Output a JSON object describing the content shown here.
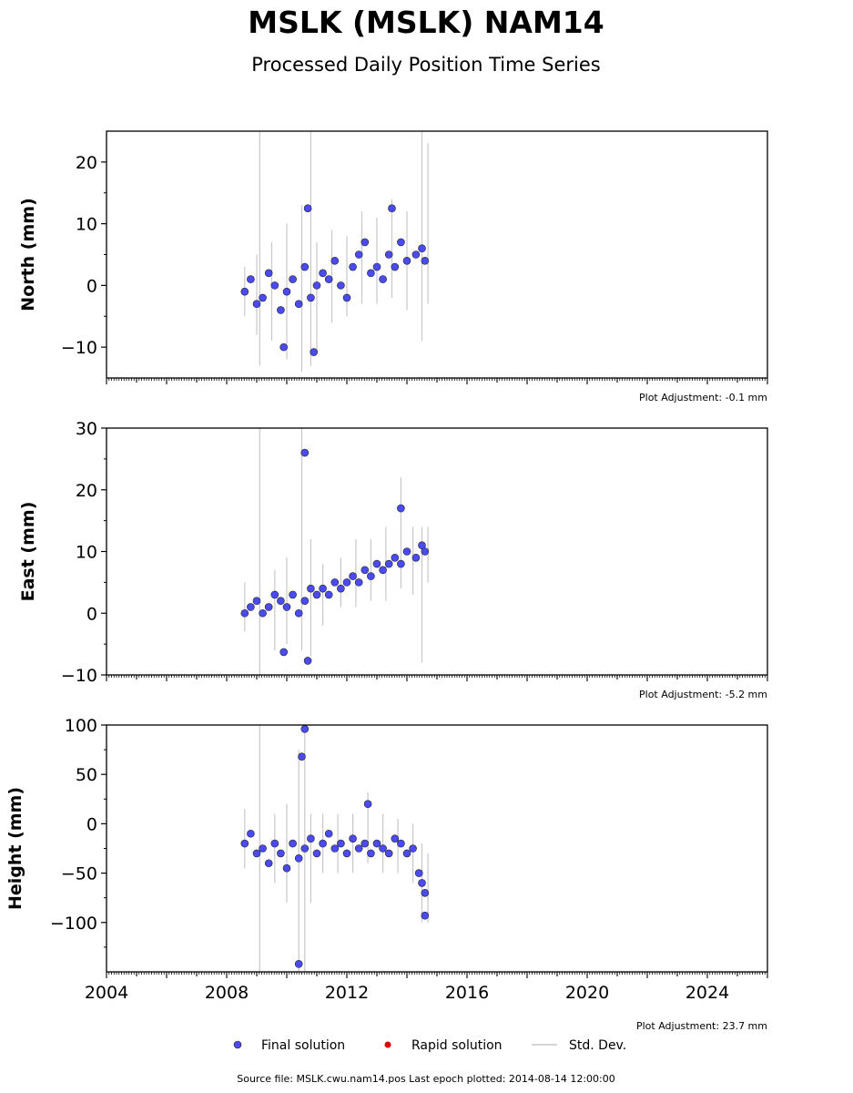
{
  "title": "MSLK (MSLK) NAM14",
  "subtitle": "Processed Daily Position Time Series",
  "footer": "Source file: MSLK.cwu.nam14.pos  Last epoch plotted: 2014-08-14 12:00:00",
  "colors": {
    "final": "#4b4bf5",
    "rapid": "#e00000",
    "stddev": "#c8c8c8"
  },
  "chart_data": [
    {
      "type": "scatter",
      "ylabel": "North (mm)",
      "ylim": [
        -15,
        25
      ],
      "yticks": [
        -10,
        0,
        10,
        20
      ],
      "xlim": [
        2004,
        2026
      ],
      "xticks": [
        2004,
        2008,
        2012,
        2016,
        2020,
        2024
      ],
      "adjustment": "Plot Adjustment: -0.1 mm",
      "series": [
        {
          "name": "Final solution",
          "x": [
            2008.6,
            2008.8,
            2009.0,
            2009.2,
            2009.4,
            2009.6,
            2009.8,
            2010.0,
            2010.2,
            2010.4,
            2010.6,
            2010.8,
            2011.0,
            2011.2,
            2011.4,
            2011.6,
            2011.8,
            2012.0,
            2012.2,
            2012.4,
            2012.6,
            2012.8,
            2013.0,
            2013.2,
            2013.4,
            2013.6,
            2013.8,
            2014.0,
            2014.3,
            2014.5,
            2014.6,
            2009.9,
            2010.7,
            2010.9,
            2013.5
          ],
          "y": [
            -1,
            1,
            -3,
            -2,
            2,
            0,
            -4,
            -1,
            1,
            -3,
            3,
            -2,
            0,
            2,
            1,
            4,
            0,
            -2,
            3,
            5,
            7,
            2,
            3,
            1,
            5,
            3,
            7,
            4,
            5,
            6,
            4,
            -10,
            12.5,
            -10.8,
            12.5
          ]
        }
      ],
      "std_dev": [
        [
          2008.6,
          -5,
          3
        ],
        [
          2009.0,
          -8,
          5
        ],
        [
          2009.1,
          -13,
          25
        ],
        [
          2009.5,
          -9,
          7
        ],
        [
          2010.0,
          -12,
          10
        ],
        [
          2010.5,
          -14,
          13
        ],
        [
          2010.8,
          -13,
          25
        ],
        [
          2011.0,
          -11,
          7
        ],
        [
          2011.5,
          -6,
          9
        ],
        [
          2012.0,
          -5,
          8
        ],
        [
          2012.5,
          -3,
          12
        ],
        [
          2013.0,
          -3,
          11
        ],
        [
          2013.5,
          -2,
          14
        ],
        [
          2014.0,
          -4,
          12
        ],
        [
          2014.5,
          -9,
          25
        ],
        [
          2014.7,
          -3,
          23
        ]
      ]
    },
    {
      "type": "scatter",
      "ylabel": "East (mm)",
      "ylim": [
        -10,
        30
      ],
      "yticks": [
        -10,
        0,
        10,
        20,
        30
      ],
      "xlim": [
        2004,
        2026
      ],
      "xticks": [
        2004,
        2008,
        2012,
        2016,
        2020,
        2024
      ],
      "adjustment": "Plot Adjustment: -5.2 mm",
      "series": [
        {
          "name": "Final solution",
          "x": [
            2008.6,
            2008.8,
            2009.0,
            2009.2,
            2009.4,
            2009.6,
            2009.8,
            2010.0,
            2010.2,
            2010.4,
            2010.6,
            2010.8,
            2011.0,
            2011.2,
            2011.4,
            2011.6,
            2011.8,
            2012.0,
            2012.2,
            2012.4,
            2012.6,
            2012.8,
            2013.0,
            2013.2,
            2013.4,
            2013.6,
            2013.8,
            2014.0,
            2014.3,
            2014.5,
            2014.6,
            2010.6,
            2010.7,
            2009.9,
            2013.8
          ],
          "y": [
            0,
            1,
            2,
            0,
            1,
            3,
            2,
            1,
            3,
            0,
            2,
            4,
            3,
            4,
            3,
            5,
            4,
            5,
            6,
            5,
            7,
            6,
            8,
            7,
            8,
            9,
            8,
            10,
            9,
            11,
            10,
            26,
            -7.7,
            -6.3,
            17
          ]
        }
      ],
      "std_dev": [
        [
          2008.6,
          -3,
          5
        ],
        [
          2009.1,
          -10,
          30
        ],
        [
          2009.6,
          -6,
          7
        ],
        [
          2010.0,
          -5,
          9
        ],
        [
          2010.5,
          -6,
          30
        ],
        [
          2010.8,
          -7,
          12
        ],
        [
          2011.2,
          -2,
          8
        ],
        [
          2011.8,
          1,
          9
        ],
        [
          2012.3,
          1,
          12
        ],
        [
          2012.8,
          2,
          12
        ],
        [
          2013.3,
          2,
          14
        ],
        [
          2013.8,
          4,
          22
        ],
        [
          2014.2,
          3,
          14
        ],
        [
          2014.5,
          -8,
          14
        ],
        [
          2014.7,
          5,
          14
        ]
      ]
    },
    {
      "type": "scatter",
      "ylabel": "Height (mm)",
      "ylim": [
        -150,
        100
      ],
      "yticks": [
        -100,
        -50,
        0,
        50,
        100
      ],
      "xlim": [
        2004,
        2026
      ],
      "xticks": [
        2004,
        2008,
        2012,
        2016,
        2020,
        2024
      ],
      "adjustment": "Plot Adjustment: 23.7 mm",
      "series": [
        {
          "name": "Final solution",
          "x": [
            2008.6,
            2008.8,
            2009.0,
            2009.2,
            2009.4,
            2009.6,
            2009.8,
            2010.0,
            2010.2,
            2010.4,
            2010.6,
            2010.8,
            2011.0,
            2011.2,
            2011.4,
            2011.6,
            2011.8,
            2012.0,
            2012.2,
            2012.4,
            2012.6,
            2012.8,
            2013.0,
            2013.2,
            2013.4,
            2013.6,
            2013.8,
            2014.0,
            2014.2,
            2014.4,
            2014.5,
            2014.6,
            2010.5,
            2010.6,
            2010.4,
            2012.7,
            2014.6
          ],
          "y": [
            -20,
            -10,
            -30,
            -25,
            -40,
            -20,
            -30,
            -45,
            -20,
            -35,
            -25,
            -15,
            -30,
            -20,
            -10,
            -25,
            -20,
            -30,
            -15,
            -25,
            -20,
            -30,
            -20,
            -25,
            -30,
            -15,
            -20,
            -30,
            -25,
            -50,
            -60,
            -70,
            68,
            96,
            -142,
            20,
            -93
          ]
        }
      ],
      "std_dev": [
        [
          2008.6,
          -45,
          15
        ],
        [
          2009.1,
          -150,
          100
        ],
        [
          2009.6,
          -60,
          10
        ],
        [
          2010.0,
          -80,
          20
        ],
        [
          2010.4,
          -150,
          75
        ],
        [
          2010.6,
          -150,
          100
        ],
        [
          2010.8,
          -80,
          10
        ],
        [
          2011.2,
          -50,
          10
        ],
        [
          2011.7,
          -50,
          10
        ],
        [
          2012.2,
          -50,
          10
        ],
        [
          2012.7,
          -40,
          32
        ],
        [
          2013.2,
          -50,
          10
        ],
        [
          2013.7,
          -50,
          5
        ],
        [
          2014.2,
          -60,
          0
        ],
        [
          2014.5,
          -100,
          -20
        ],
        [
          2014.7,
          -100,
          -30
        ]
      ]
    }
  ],
  "legend": {
    "final_label": "Final solution",
    "rapid_label": "Rapid solution",
    "stddev_label": "Std. Dev."
  }
}
